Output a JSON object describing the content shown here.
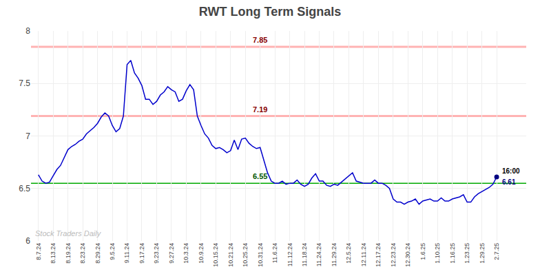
{
  "chart_data": {
    "type": "line",
    "title": "RWT Long Term Signals",
    "categories": [
      "8.7.24",
      null,
      null,
      null,
      "8.13.24",
      null,
      null,
      null,
      "8.19.24",
      null,
      null,
      null,
      "8.23.24",
      null,
      null,
      null,
      "8.29.24",
      null,
      null,
      null,
      "9.5.24",
      null,
      null,
      null,
      "9.11.24",
      null,
      null,
      null,
      "9.17.24",
      null,
      null,
      null,
      "9.23.24",
      null,
      null,
      null,
      "9.27.24",
      null,
      null,
      null,
      "10.3.24",
      null,
      null,
      null,
      "10.9.24",
      null,
      null,
      null,
      "10.15.24",
      null,
      null,
      null,
      "10.21.24",
      null,
      null,
      null,
      "10.25.24",
      null,
      null,
      null,
      "10.31.24",
      null,
      null,
      null,
      "11.6.24",
      null,
      null,
      null,
      "11.12.24",
      null,
      null,
      null,
      "11.18.24",
      null,
      null,
      null,
      "11.24.24",
      null,
      null,
      null,
      "11.29.24",
      null,
      null,
      null,
      "12.5.24",
      null,
      null,
      null,
      "12.11.24",
      null,
      null,
      null,
      "12.17.24",
      null,
      null,
      null,
      "12.23.24",
      null,
      null,
      null,
      "12.30.24",
      null,
      null,
      null,
      "1.6.25",
      null,
      null,
      null,
      "1.10.25",
      null,
      null,
      null,
      "1.16.25",
      null,
      null,
      null,
      "1.23.25",
      null,
      null,
      null,
      "1.29.25",
      null,
      null,
      null,
      "2.7.25"
    ],
    "series": [
      {
        "color": "#0000cc",
        "values": [
          6.63,
          6.57,
          6.55,
          6.56,
          6.62,
          6.68,
          6.72,
          6.8,
          6.87,
          6.9,
          6.92,
          6.95,
          6.97,
          7.02,
          7.05,
          7.08,
          7.12,
          7.18,
          7.22,
          7.19,
          7.1,
          7.04,
          7.07,
          7.19,
          7.68,
          7.72,
          7.6,
          7.55,
          7.48,
          7.35,
          7.35,
          7.3,
          7.33,
          7.39,
          7.42,
          7.47,
          7.44,
          7.42,
          7.33,
          7.35,
          7.43,
          7.49,
          7.44,
          7.19,
          7.1,
          7.02,
          6.98,
          6.91,
          6.88,
          6.89,
          6.87,
          6.84,
          6.86,
          6.96,
          6.87,
          6.97,
          6.98,
          6.93,
          6.9,
          6.88,
          6.89,
          6.77,
          6.65,
          6.57,
          6.55,
          6.55,
          6.57,
          6.54,
          6.55,
          6.55,
          6.58,
          6.54,
          6.52,
          6.54,
          6.6,
          6.64,
          6.57,
          6.57,
          6.53,
          6.52,
          6.54,
          6.53,
          6.56,
          6.59,
          6.62,
          6.65,
          6.57,
          6.56,
          6.55,
          6.55,
          6.55,
          6.58,
          6.55,
          6.55,
          6.53,
          6.5,
          6.4,
          6.37,
          6.37,
          6.35,
          6.37,
          6.38,
          6.4,
          6.35,
          6.38,
          6.39,
          6.4,
          6.38,
          6.38,
          6.41,
          6.38,
          6.38,
          6.4,
          6.41,
          6.42,
          6.44,
          6.37,
          6.37,
          6.42,
          6.45,
          6.47,
          6.49,
          6.51,
          6.54,
          6.61
        ]
      }
    ],
    "hlines": [
      {
        "value": 7.85,
        "label": "7.85",
        "color": "#ffb3b3",
        "label_color": "#880000",
        "x": "10.31.24"
      },
      {
        "value": 7.19,
        "label": "7.19",
        "color": "#ffb3b3",
        "label_color": "#880000",
        "x": "10.31.24"
      },
      {
        "value": 6.55,
        "label": "6.55",
        "color": "#00aa00",
        "label_color": "#005500",
        "x": "10.31.24"
      }
    ],
    "last_point": {
      "label": "16:00",
      "value_label": "6.61",
      "color": "#000080"
    },
    "watermark": {
      "text": "Stock Traders Daily",
      "color": "#bbbbbb"
    },
    "ylim": [
      6.0,
      8.0
    ],
    "yticks": [
      6,
      6.5,
      7,
      7.5,
      8
    ],
    "grid": true
  }
}
